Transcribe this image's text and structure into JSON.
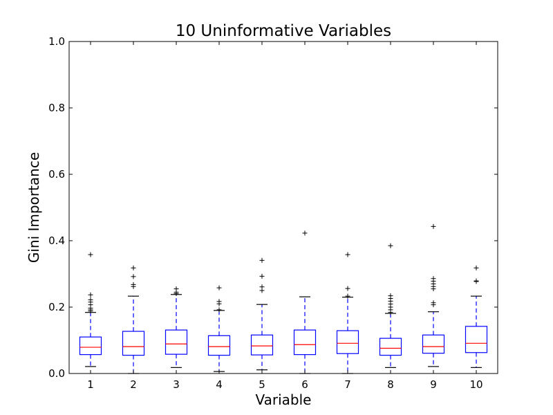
{
  "chart_data": {
    "type": "box",
    "title": "10 Uninformative Variables",
    "xlabel": "Variable",
    "ylabel": "Gini Importance",
    "ylim": [
      0.0,
      1.0
    ],
    "yticks": [
      "0.0",
      "0.2",
      "0.4",
      "0.6",
      "0.8",
      "1.0"
    ],
    "yticks_values": [
      0.0,
      0.2,
      0.4,
      0.6,
      0.8,
      1.0
    ],
    "categories": [
      "1",
      "2",
      "3",
      "4",
      "5",
      "6",
      "7",
      "8",
      "9",
      "10"
    ],
    "grid": false,
    "colors": {
      "box": "#0000ff",
      "median": "#ff0000",
      "whisker": "#0000ff",
      "cap": "#000000",
      "flier": "#000000"
    },
    "boxes": [
      {
        "q1": 0.057,
        "median": 0.079,
        "q3": 0.11,
        "whisker_low": 0.021,
        "whisker_high": 0.184,
        "fliers": [
          0.188,
          0.192,
          0.197,
          0.207,
          0.215,
          0.222,
          0.237,
          0.358
        ]
      },
      {
        "q1": 0.055,
        "median": 0.081,
        "q3": 0.127,
        "whisker_low": 0.0,
        "whisker_high": 0.233,
        "fliers": [
          0.262,
          0.268,
          0.292,
          0.318
        ]
      },
      {
        "q1": 0.058,
        "median": 0.089,
        "q3": 0.131,
        "whisker_low": 0.018,
        "whisker_high": 0.238,
        "fliers": [
          0.241,
          0.245,
          0.255
        ]
      },
      {
        "q1": 0.055,
        "median": 0.081,
        "q3": 0.114,
        "whisker_low": 0.006,
        "whisker_high": 0.19,
        "fliers": [
          0.192,
          0.21,
          0.217,
          0.258
        ]
      },
      {
        "q1": 0.056,
        "median": 0.083,
        "q3": 0.116,
        "whisker_low": 0.011,
        "whisker_high": 0.208,
        "fliers": [
          0.25,
          0.261,
          0.293,
          0.341
        ]
      },
      {
        "q1": 0.057,
        "median": 0.087,
        "q3": 0.131,
        "whisker_low": 0.0,
        "whisker_high": 0.231,
        "fliers": [
          0.423
        ]
      },
      {
        "q1": 0.06,
        "median": 0.091,
        "q3": 0.129,
        "whisker_low": 0.0,
        "whisker_high": 0.23,
        "fliers": [
          0.233,
          0.256,
          0.358
        ]
      },
      {
        "q1": 0.055,
        "median": 0.076,
        "q3": 0.106,
        "whisker_low": 0.018,
        "whisker_high": 0.181,
        "fliers": [
          0.184,
          0.192,
          0.2,
          0.209,
          0.218,
          0.226,
          0.234,
          0.385
        ]
      },
      {
        "q1": 0.061,
        "median": 0.081,
        "q3": 0.116,
        "whisker_low": 0.021,
        "whisker_high": 0.186,
        "fliers": [
          0.207,
          0.213,
          0.255,
          0.262,
          0.27,
          0.278,
          0.286,
          0.443
        ]
      },
      {
        "q1": 0.063,
        "median": 0.091,
        "q3": 0.142,
        "whisker_low": 0.018,
        "whisker_high": 0.233,
        "fliers": [
          0.277,
          0.279,
          0.318
        ]
      }
    ]
  }
}
